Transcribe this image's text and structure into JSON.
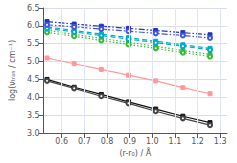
{
  "chart_data": {
    "type": "line",
    "xlabel": "(r-r₀) / Å",
    "ylabel": "log(νₜᵣₐₙ / cm⁻¹)",
    "xlim": [
      0.52,
      1.33
    ],
    "ylim": [
      3.0,
      6.5
    ],
    "xticks": [
      0.6,
      0.7,
      0.8,
      0.9,
      {
        "value": 1.0,
        "label": "1.0"
      },
      1.1,
      1.2,
      1.3
    ],
    "yticks": [
      {
        "value": 3.0,
        "label": "3.0"
      },
      3.5,
      {
        "value": 4.0,
        "label": "4.0"
      },
      4.5,
      {
        "value": 5.0,
        "label": "5.0"
      },
      5.5,
      {
        "value": 6.0,
        "label": "6.0"
      },
      6.5
    ],
    "grid": true,
    "x": [
      0.535,
      0.655,
      0.775,
      0.895,
      1.015,
      1.135,
      1.255
    ],
    "series": [
      {
        "color": "#111111",
        "line_style": "solid",
        "marker": "square",
        "values": [
          4.5,
          4.28,
          4.08,
          3.87,
          3.67,
          3.47,
          3.29
        ]
      },
      {
        "color": "#444444",
        "line_style": "solid",
        "marker": "open_circle",
        "values": [
          4.46,
          4.25,
          4.03,
          3.83,
          3.61,
          3.41,
          3.22
        ]
      },
      {
        "color": "#ff9999",
        "line_style": "solid",
        "marker": "square",
        "values": [
          5.1,
          4.94,
          4.78,
          4.62,
          4.46,
          4.27,
          4.1
        ]
      },
      {
        "color": "#33bb33",
        "line_style": "dotted",
        "marker": "square",
        "values": [
          5.88,
          5.76,
          5.65,
          5.54,
          5.43,
          5.31,
          5.2
        ]
      },
      {
        "color": "#33bb33",
        "line_style": "dotted",
        "marker": "open_circle",
        "values": [
          5.82,
          5.71,
          5.59,
          5.48,
          5.37,
          5.25,
          5.14
        ]
      },
      {
        "color": "#00aacc",
        "line_style": "dashed",
        "marker": "square",
        "values": [
          5.97,
          5.87,
          5.77,
          5.67,
          5.57,
          5.47,
          5.37
        ]
      },
      {
        "color": "#00aacc",
        "line_style": "dashed",
        "marker": "open_circle",
        "values": [
          5.93,
          5.83,
          5.73,
          5.63,
          5.53,
          5.43,
          5.33
        ]
      },
      {
        "color": "#2233cc",
        "line_style": "dashdot",
        "marker": "square",
        "values": [
          6.12,
          6.05,
          5.99,
          5.93,
          5.87,
          5.81,
          5.75
        ]
      },
      {
        "color": "#4455dd",
        "line_style": "dashdot",
        "marker": "open_circle",
        "values": [
          6.03,
          5.97,
          5.91,
          5.85,
          5.79,
          5.73,
          5.66
        ]
      }
    ]
  }
}
